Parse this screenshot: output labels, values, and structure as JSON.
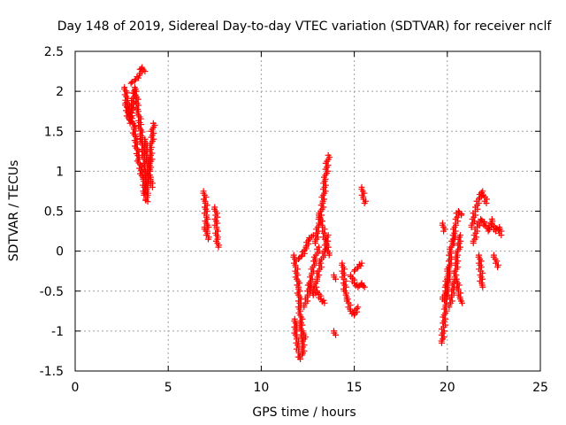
{
  "chart_data": {
    "type": "scatter",
    "title": "Day 148 of 2019, Sidereal Day-to-day VTEC variation (SDTVAR) for receiver nclf",
    "xlabel": "GPS time / hours",
    "ylabel": "SDTVAR / TECUs",
    "xlim": [
      0,
      25
    ],
    "ylim": [
      -1.5,
      2.5
    ],
    "xticks": [
      "0",
      "5",
      "10",
      "15",
      "20",
      "25"
    ],
    "yticks": [
      "-1.5",
      "-1",
      "-0.5",
      "0",
      "0.5",
      "1",
      "1.5",
      "2",
      "2.5"
    ],
    "grid": true,
    "marker": "plus",
    "color": "#ff0000",
    "segments": [
      {
        "x": [
          2.65,
          2.9,
          3.15,
          3.4,
          3.65,
          3.8,
          3.9
        ],
        "y": [
          2.05,
          1.75,
          1.55,
          1.15,
          0.9,
          0.65,
          0.62
        ]
      },
      {
        "x": [
          2.7,
          2.95,
          3.2,
          3.4,
          3.6,
          3.75,
          3.9
        ],
        "y": [
          1.85,
          1.6,
          2.05,
          1.75,
          1.35,
          1.05,
          0.7
        ]
      },
      {
        "x": [
          3.0,
          3.25,
          3.45,
          3.6,
          3.75
        ],
        "y": [
          2.1,
          2.15,
          2.2,
          2.3,
          2.25
        ]
      },
      {
        "x": [
          3.7,
          3.85,
          4.0,
          4.1,
          4.2
        ],
        "y": [
          0.7,
          0.85,
          1.0,
          1.3,
          1.6
        ]
      },
      {
        "x": [
          3.75,
          3.9,
          4.05,
          4.15
        ],
        "y": [
          1.4,
          1.1,
          0.9,
          0.8
        ]
      },
      {
        "x": [
          6.9,
          7.0,
          7.05,
          7.1
        ],
        "y": [
          0.75,
          0.6,
          0.45,
          0.25
        ]
      },
      {
        "x": [
          6.95,
          7.05,
          7.15
        ],
        "y": [
          0.3,
          0.2,
          0.15
        ]
      },
      {
        "x": [
          7.5,
          7.55,
          7.6,
          7.65,
          7.7
        ],
        "y": [
          0.55,
          0.45,
          0.3,
          0.15,
          0.05
        ]
      },
      {
        "x": [
          11.75,
          11.85,
          12.0,
          12.1,
          12.2
        ],
        "y": [
          -0.05,
          -0.2,
          -0.45,
          -0.75,
          -1.1
        ]
      },
      {
        "x": [
          11.8,
          11.9,
          12.0,
          12.1,
          12.2,
          12.3
        ],
        "y": [
          -0.85,
          -1.1,
          -1.25,
          -1.35,
          -1.3,
          -1.05
        ]
      },
      {
        "x": [
          12.0,
          12.2,
          12.4,
          12.6,
          12.8
        ],
        "y": [
          -0.1,
          -0.05,
          0.05,
          0.15,
          0.2
        ]
      },
      {
        "x": [
          12.3,
          12.5,
          12.7,
          12.9,
          13.1
        ],
        "y": [
          -0.7,
          -0.55,
          -0.3,
          -0.1,
          0.05
        ]
      },
      {
        "x": [
          12.6,
          12.8,
          13.0,
          13.2,
          13.4,
          13.6
        ],
        "y": [
          -0.4,
          -0.55,
          -0.35,
          -0.15,
          0.0,
          0.2
        ]
      },
      {
        "x": [
          12.9,
          13.1,
          13.3,
          13.45,
          13.6
        ],
        "y": [
          0.1,
          0.35,
          0.6,
          0.9,
          1.2
        ]
      },
      {
        "x": [
          13.1,
          13.3,
          13.5,
          13.65
        ],
        "y": [
          0.45,
          0.3,
          0.1,
          -0.05
        ]
      },
      {
        "x": [
          13.0,
          13.2,
          13.4
        ],
        "y": [
          -0.5,
          -0.6,
          -0.65
        ]
      },
      {
        "x": [
          13.9,
          14.0
        ],
        "y": [
          -1.0,
          -1.05
        ]
      },
      {
        "x": [
          13.9,
          14.0
        ],
        "y": [
          -0.3,
          -0.35
        ]
      },
      {
        "x": [
          14.35,
          14.45,
          14.55,
          14.65
        ],
        "y": [
          -0.15,
          -0.35,
          -0.55,
          -0.6
        ]
      },
      {
        "x": [
          14.6,
          14.8,
          15.0,
          15.2
        ],
        "y": [
          -0.6,
          -0.75,
          -0.8,
          -0.7
        ]
      },
      {
        "x": [
          14.8,
          15.0,
          15.2,
          15.4,
          15.55
        ],
        "y": [
          -0.3,
          -0.4,
          -0.45,
          -0.4,
          -0.45
        ]
      },
      {
        "x": [
          15.0,
          15.2,
          15.4
        ],
        "y": [
          -0.25,
          -0.2,
          -0.15
        ]
      },
      {
        "x": [
          15.4,
          15.5,
          15.55
        ],
        "y": [
          0.8,
          0.65,
          0.6
        ]
      },
      {
        "x": [
          19.7,
          19.8,
          19.9,
          20.0,
          20.1
        ],
        "y": [
          -1.15,
          -0.95,
          -0.7,
          -0.45,
          -0.2
        ]
      },
      {
        "x": [
          19.75,
          19.9,
          20.05,
          20.2,
          20.35
        ],
        "y": [
          -0.6,
          -0.5,
          -0.3,
          0.0,
          0.2
        ]
      },
      {
        "x": [
          20.1,
          20.25,
          20.4,
          20.55,
          20.7
        ],
        "y": [
          -0.7,
          -0.55,
          -0.35,
          -0.05,
          0.2
        ]
      },
      {
        "x": [
          20.3,
          20.45,
          20.6,
          20.75
        ],
        "y": [
          0.1,
          0.35,
          0.5,
          0.45
        ]
      },
      {
        "x": [
          20.5,
          20.6,
          20.7,
          20.8
        ],
        "y": [
          -0.35,
          -0.5,
          -0.6,
          -0.65
        ]
      },
      {
        "x": [
          19.75,
          19.8
        ],
        "y": [
          0.35,
          0.25
        ]
      },
      {
        "x": [
          21.3,
          21.5,
          21.7,
          21.9,
          22.1
        ],
        "y": [
          0.3,
          0.5,
          0.65,
          0.75,
          0.6
        ]
      },
      {
        "x": [
          21.4,
          21.6,
          21.8,
          22.0,
          22.2,
          22.4
        ],
        "y": [
          0.1,
          0.3,
          0.4,
          0.35,
          0.25,
          0.4
        ]
      },
      {
        "x": [
          21.7,
          21.8,
          21.85,
          21.9
        ],
        "y": [
          -0.05,
          -0.25,
          -0.4,
          -0.45
        ]
      },
      {
        "x": [
          22.4,
          22.6,
          22.8,
          22.9
        ],
        "y": [
          0.35,
          0.25,
          0.3,
          0.2
        ]
      },
      {
        "x": [
          22.5,
          22.6,
          22.7
        ],
        "y": [
          -0.05,
          -0.15,
          -0.2
        ]
      }
    ]
  }
}
